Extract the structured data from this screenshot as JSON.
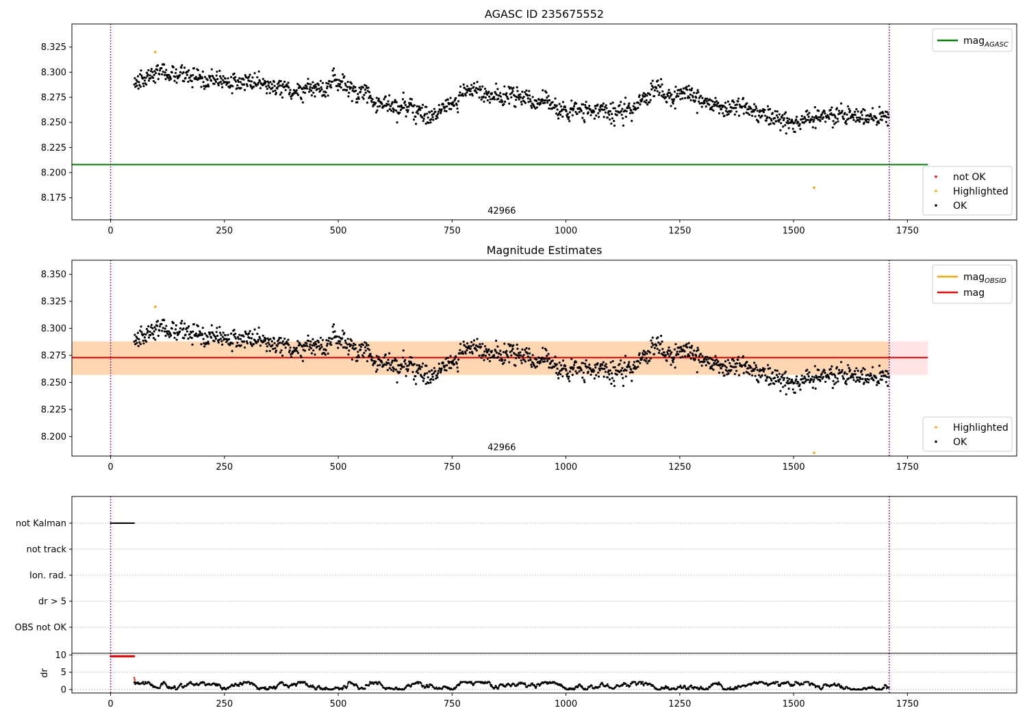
{
  "chart_data": [
    {
      "type": "scatter",
      "title": "AGASC ID 235675552",
      "xlim": [
        -85,
        1990
      ],
      "ylim": [
        8.153,
        8.348
      ],
      "xticks": [
        0,
        250,
        500,
        750,
        1000,
        1250,
        1500,
        1750
      ],
      "yticks": [
        8.175,
        8.2,
        8.225,
        8.25,
        8.275,
        8.3,
        8.325
      ],
      "ytick_labels": [
        "8.175",
        "8.200",
        "8.225",
        "8.250",
        "8.275",
        "8.300",
        "8.325"
      ],
      "obsid_annotation": {
        "text": "42966",
        "x": 855,
        "y": 8.162
      },
      "vertical_lines": [
        0,
        1710
      ],
      "hlines": [
        {
          "name": "mag_AGASC",
          "y": 8.208,
          "xmin": -85,
          "xmax": 1795,
          "color": "#008000"
        }
      ],
      "series": [
        {
          "name": "OK",
          "color": "#000000",
          "kind": "points",
          "x_range": [
            52,
            1710
          ],
          "y_range": [
            8.237,
            8.308
          ],
          "trend": [
            [
              52,
              8.288
            ],
            [
              100,
              8.302
            ],
            [
              200,
              8.292
            ],
            [
              300,
              8.293
            ],
            [
              400,
              8.276
            ],
            [
              500,
              8.288
            ],
            [
              600,
              8.268
            ],
            [
              700,
              8.258
            ],
            [
              800,
              8.28
            ],
            [
              900,
              8.274
            ],
            [
              1000,
              8.262
            ],
            [
              1100,
              8.258
            ],
            [
              1200,
              8.279
            ],
            [
              1300,
              8.268
            ],
            [
              1400,
              8.262
            ],
            [
              1500,
              8.25
            ],
            [
              1600,
              8.257
            ],
            [
              1710,
              8.253
            ]
          ]
        },
        {
          "name": "Highlighted",
          "color": "#ffa500",
          "kind": "points",
          "points": [
            [
              98,
              8.32
            ],
            [
              1545,
              8.185
            ]
          ]
        },
        {
          "name": "not OK",
          "color": "#ff0000",
          "kind": "points",
          "points": []
        }
      ],
      "legend_lines": [
        {
          "label": "mag",
          "sub": "AGASC",
          "color": "#008000"
        }
      ],
      "legend_points": [
        {
          "label": "not OK",
          "color": "#ff0000"
        },
        {
          "label": "Highlighted",
          "color": "#ffa500"
        },
        {
          "label": "OK",
          "color": "#000000"
        }
      ]
    },
    {
      "type": "scatter",
      "title": "Magnitude Estimates",
      "xlim": [
        -85,
        1990
      ],
      "ylim": [
        8.182,
        8.363
      ],
      "xticks": [
        0,
        250,
        500,
        750,
        1000,
        1250,
        1500,
        1750
      ],
      "yticks": [
        8.2,
        8.225,
        8.25,
        8.275,
        8.3,
        8.325,
        8.35
      ],
      "ytick_labels": [
        "8.200",
        "8.225",
        "8.250",
        "8.275",
        "8.300",
        "8.325",
        "8.350"
      ],
      "obsid_annotation": {
        "text": "42966",
        "x": 855,
        "y": 8.19
      },
      "vertical_lines": [
        0,
        1710
      ],
      "hlines": [
        {
          "name": "mag",
          "y": 8.273,
          "xmin": -85,
          "xmax": 1795,
          "color": "#ff0000"
        }
      ],
      "bands": [
        {
          "name": "mag band",
          "y0": 8.257,
          "y1": 8.288,
          "xmin": -85,
          "xmax": 1795,
          "color": "#ff0000",
          "opacity": 0.1
        },
        {
          "name": "mag_OBSID band",
          "y0": 8.257,
          "y1": 8.288,
          "xmin": -85,
          "xmax": 1710,
          "color": "#ffa500",
          "opacity": 0.22
        }
      ],
      "series": [
        {
          "name": "OK",
          "color": "#000000",
          "kind": "points",
          "x_range": [
            52,
            1710
          ],
          "y_range": [
            8.237,
            8.308
          ],
          "trend": [
            [
              52,
              8.288
            ],
            [
              100,
              8.302
            ],
            [
              200,
              8.292
            ],
            [
              300,
              8.293
            ],
            [
              400,
              8.276
            ],
            [
              500,
              8.288
            ],
            [
              600,
              8.268
            ],
            [
              700,
              8.258
            ],
            [
              800,
              8.28
            ],
            [
              900,
              8.274
            ],
            [
              1000,
              8.262
            ],
            [
              1100,
              8.258
            ],
            [
              1200,
              8.279
            ],
            [
              1300,
              8.268
            ],
            [
              1400,
              8.262
            ],
            [
              1500,
              8.25
            ],
            [
              1600,
              8.257
            ],
            [
              1710,
              8.253
            ]
          ]
        },
        {
          "name": "Highlighted",
          "color": "#ffa500",
          "kind": "points",
          "points": [
            [
              98,
              8.32
            ],
            [
              1545,
              8.185
            ]
          ]
        }
      ],
      "legend_lines": [
        {
          "label": "mag",
          "sub": "OBSID",
          "color": "#ffa500"
        },
        {
          "label": "mag",
          "sub": "",
          "color": "#ff0000"
        }
      ],
      "legend_points": [
        {
          "label": "Highlighted",
          "color": "#ffa500"
        },
        {
          "label": "OK",
          "color": "#000000"
        }
      ]
    },
    {
      "type": "scatter",
      "title": "",
      "xlim": [
        -85,
        1990
      ],
      "categories": [
        "OBS not OK",
        "dr > 5",
        "Ion. rad.",
        "not track",
        "not Kalman"
      ],
      "vertical_lines": [
        0,
        1710
      ],
      "grid": true,
      "series": [
        {
          "name": "not Kalman",
          "color": "#000000",
          "kind": "segment",
          "x_range": [
            0,
            52
          ]
        }
      ]
    },
    {
      "type": "scatter",
      "title": "",
      "ylabel": "dr",
      "xlim": [
        -85,
        1990
      ],
      "ylim": [
        -1,
        10.5
      ],
      "xticks": [
        0,
        250,
        500,
        750,
        1000,
        1250,
        1500,
        1750
      ],
      "yticks": [
        0,
        5,
        10
      ],
      "ytick_labels": [
        "0",
        "5",
        "10"
      ],
      "vertical_lines": [
        0,
        1710
      ],
      "grid": true,
      "series": [
        {
          "name": "not OK",
          "color": "#ff0000",
          "kind": "points",
          "x_range": [
            0,
            52
          ],
          "y_level": 9.6
        },
        {
          "name": "OK",
          "color": "#000000",
          "kind": "points",
          "x_range": [
            52,
            1710
          ],
          "y_range": [
            0,
            2.2
          ]
        }
      ]
    }
  ]
}
